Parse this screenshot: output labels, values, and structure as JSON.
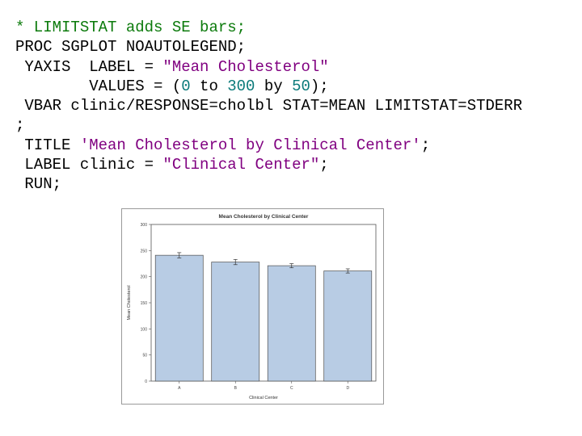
{
  "code": {
    "comment": "* LIMITSTAT adds SE bars;",
    "line1": "PROC SGPLOT NOAUTOLEGEND;",
    "yaxis_kw": " YAXIS  LABEL = ",
    "yaxis_label_str": "\"Mean Cholesterol\"",
    "values_kw": "        VALUES = (",
    "values_start": "0",
    "values_to": " to ",
    "values_end": "300",
    "values_by": " by ",
    "values_step": "50",
    "values_close": ");",
    "vbar": " VBAR clinic/RESPONSE=cholbl STAT=MEAN LIMITSTAT=STDERR",
    "semicolon": ";",
    "title_kw": " TITLE ",
    "title_str": "'Mean Cholesterol by Clinical Center'",
    "title_end": ";",
    "label_kw": " LABEL clinic = ",
    "label_str": "\"Clinical Center\"",
    "label_end": ";",
    "run": " RUN;"
  },
  "chart_data": {
    "type": "bar",
    "title": "Mean Cholesterol by Clinical Center",
    "xlabel": "Clinical Center",
    "ylabel": "Mean Cholesterol",
    "categories": [
      "A",
      "B",
      "C",
      "D"
    ],
    "values": [
      241,
      228,
      221,
      211
    ],
    "stderr": [
      5,
      5,
      4,
      4
    ],
    "ylim": [
      0,
      300
    ],
    "yticks": [
      0,
      50,
      100,
      150,
      200,
      250,
      300
    ],
    "grid": false,
    "colors": {
      "bar_fill": "#b8cce4",
      "bar_stroke": "#4d4d4d",
      "error_bar": "#333333",
      "frame": "#555555"
    }
  }
}
